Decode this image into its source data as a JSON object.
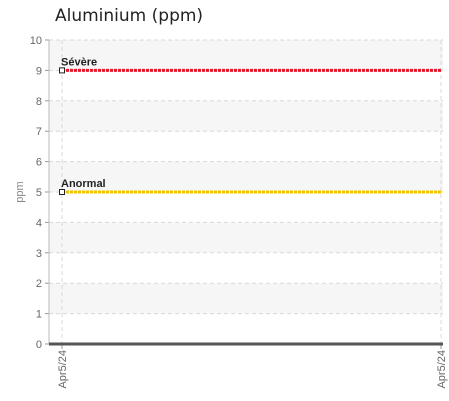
{
  "chart_data": {
    "type": "line",
    "title": "Aluminium (ppm)",
    "ylabel": "ppm",
    "xlabel": "",
    "ylim": [
      0,
      10
    ],
    "y_ticks": [
      "0",
      "1",
      "2",
      "3",
      "4",
      "5",
      "6",
      "7",
      "8",
      "9",
      "10"
    ],
    "x_ticks": [
      "Apr5/24",
      "Apr5/24"
    ],
    "grid": true,
    "series": [
      {
        "name": "Sévère",
        "values": [
          9,
          9
        ],
        "color": "#e8192c"
      },
      {
        "name": "Anormal",
        "values": [
          5,
          5
        ],
        "color": "#f2c400"
      },
      {
        "values": [
          0,
          0
        ],
        "color": "#555555"
      }
    ]
  }
}
